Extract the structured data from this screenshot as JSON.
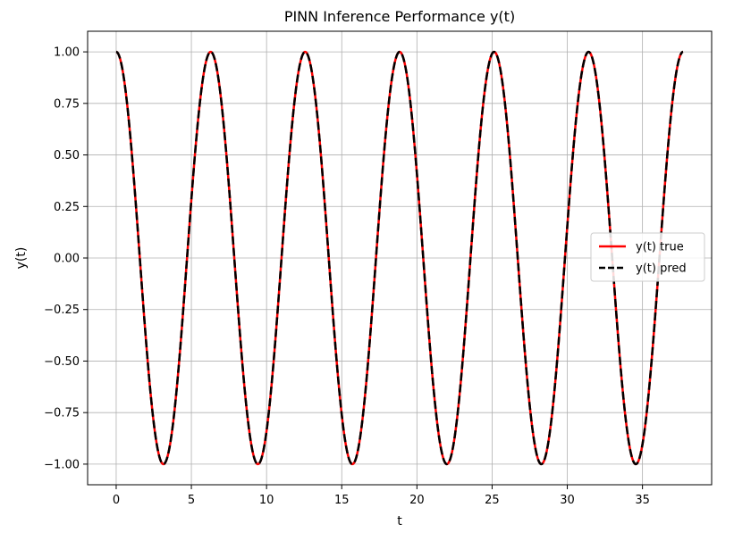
{
  "chart_data": {
    "type": "line",
    "title": "PINN Inference Performance y(t)",
    "xlabel": "t",
    "ylabel": "y(t)",
    "xlim": [
      -1.9,
      39.6
    ],
    "ylim": [
      -1.1,
      1.1
    ],
    "xticks": [
      0,
      5,
      10,
      15,
      20,
      25,
      30,
      35
    ],
    "xtick_labels": [
      "0",
      "5",
      "10",
      "15",
      "20",
      "25",
      "30",
      "35"
    ],
    "yticks": [
      1.0,
      0.75,
      0.5,
      0.25,
      0.0,
      -0.25,
      -0.5,
      -0.75,
      -1.0
    ],
    "ytick_labels": [
      "1.00",
      "0.75",
      "0.50",
      "0.25",
      "0.00",
      "−0.25",
      "−0.50",
      "−0.75",
      "−1.00"
    ],
    "grid": true,
    "legend_position": "center-right",
    "series": [
      {
        "name": "y(t) true",
        "function": "cos(t)",
        "x_range": [
          0,
          37.7
        ],
        "color": "#ff0000",
        "style": "solid"
      },
      {
        "name": "y(t) pred",
        "function": "cos(t)",
        "x_range": [
          0,
          37.7
        ],
        "color": "#000000",
        "style": "dashed"
      }
    ]
  }
}
